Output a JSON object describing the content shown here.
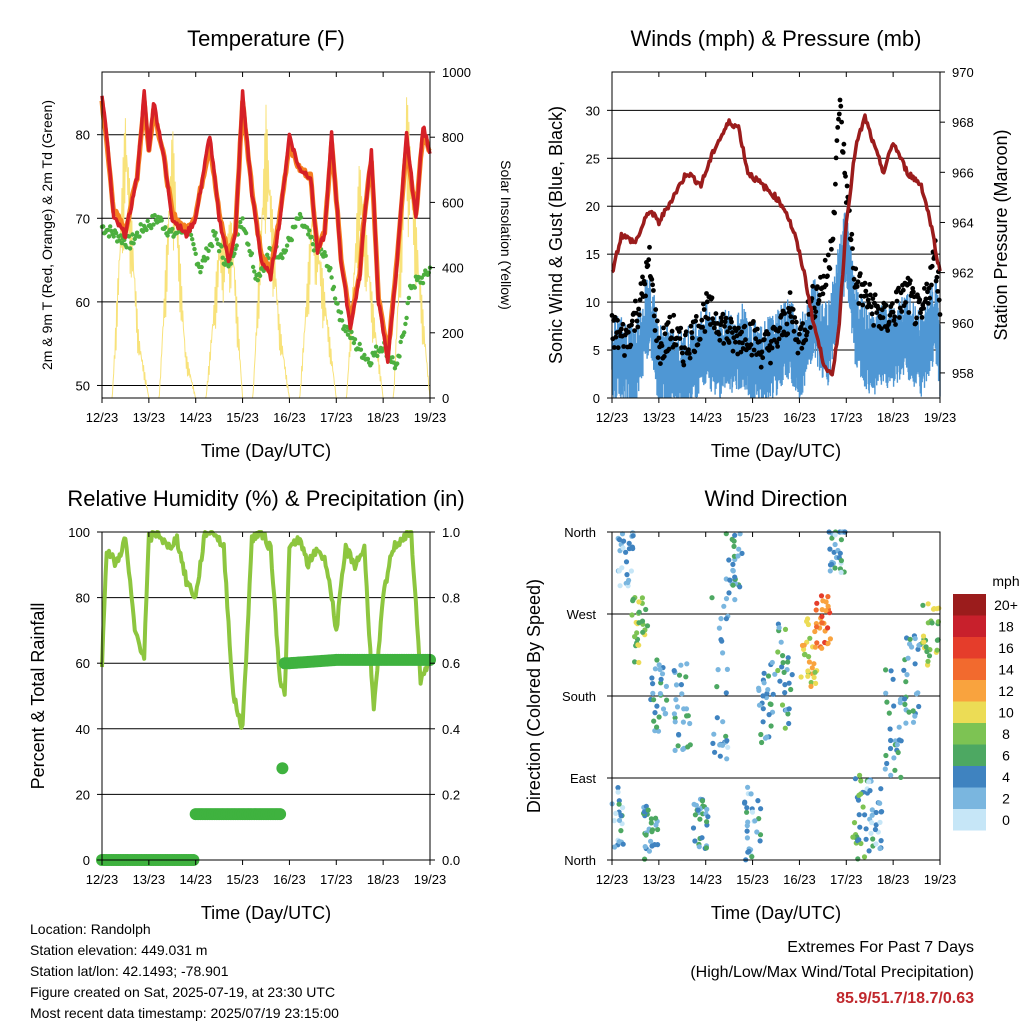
{
  "chart_data": [
    {
      "type": "line",
      "title": "Temperature (F)",
      "xlabel": "Time (Day/UTC)",
      "ylabel": "2m & 9m T (Red, Orange) & 2m Td (Green)",
      "ylabel_right": "Solar Insolation (Yellow)",
      "categories": [
        "12/23",
        "13/23",
        "14/23",
        "15/23",
        "16/23",
        "17/23",
        "18/23",
        "19/23"
      ],
      "ylim": [
        48.5,
        87.5
      ],
      "yticks": [
        50,
        60,
        70,
        80
      ],
      "ylim_right": [
        0,
        1000
      ],
      "yticks_right": [
        0,
        200,
        400,
        600,
        800,
        1000
      ],
      "colors": {
        "t2m": "#d62027",
        "t9m": "#f57f20",
        "td": "#4caf3f",
        "solar": "#f8e27a"
      },
      "series": [
        {
          "key": "t2m",
          "x": [
            0,
            0.1,
            0.25,
            0.5,
            0.75,
            0.9,
            1.0,
            1.1,
            1.3,
            1.5,
            1.8,
            2.0,
            2.3,
            2.5,
            2.7,
            2.85,
            3.0,
            3.2,
            3.4,
            3.6,
            3.8,
            4.0,
            4.2,
            4.45,
            4.6,
            4.75,
            4.9,
            5.1,
            5.3,
            5.5,
            5.6,
            5.75,
            5.9,
            6.1,
            6.3,
            6.5,
            6.7,
            6.85,
            7.0
          ],
          "values": [
            85,
            80,
            70,
            68,
            75,
            85,
            78,
            84,
            78,
            70,
            68,
            70,
            80,
            70,
            65,
            68,
            85,
            73,
            65,
            63,
            70,
            80,
            76,
            75,
            66,
            68,
            80,
            65,
            57,
            63,
            70,
            78,
            60,
            53,
            65,
            80,
            70,
            81,
            78
          ]
        },
        {
          "key": "t9m",
          "x": [
            0,
            0.1,
            0.25,
            0.5,
            0.75,
            0.9,
            1.0,
            1.1,
            1.3,
            1.5,
            1.8,
            2.0,
            2.3,
            2.5,
            2.7,
            2.85,
            3.0,
            3.2,
            3.4,
            3.6,
            3.8,
            4.0,
            4.2,
            4.45,
            4.6,
            4.75,
            4.9,
            5.1,
            5.3,
            5.5,
            5.6,
            5.75,
            5.9,
            6.1,
            6.3,
            6.5,
            6.7,
            6.85,
            7.0
          ],
          "values": [
            84,
            79,
            71,
            68.5,
            75,
            84,
            78,
            83,
            78,
            70.5,
            68.5,
            70.5,
            79,
            70.5,
            65.5,
            68.5,
            84,
            73.5,
            65.5,
            63.5,
            70.5,
            79,
            76,
            75,
            66.5,
            68.5,
            79,
            65.5,
            57.5,
            63.5,
            70.5,
            77,
            60.5,
            53.5,
            65.5,
            79,
            70.5,
            80,
            78
          ]
        },
        {
          "key": "td",
          "x": [
            0,
            0.3,
            0.6,
            0.9,
            1.2,
            1.5,
            1.8,
            2.1,
            2.4,
            2.7,
            3.0,
            3.3,
            3.6,
            3.9,
            4.2,
            4.5,
            4.8,
            5.1,
            5.4,
            5.7,
            6.0,
            6.3,
            6.6,
            6.9,
            7.0
          ],
          "values": [
            69,
            68,
            67,
            69,
            70,
            68,
            69,
            64,
            68,
            64,
            70,
            63,
            66,
            66,
            70,
            67,
            65,
            58,
            55,
            53,
            55,
            52,
            62,
            63,
            64
          ]
        },
        {
          "key": "solar",
          "x": [
            0,
            0.22,
            0.5,
            0.78,
            1.0,
            1.22,
            1.5,
            1.78,
            2.0,
            2.22,
            2.5,
            2.78,
            3.0,
            3.22,
            3.5,
            3.78,
            4.0,
            4.22,
            4.5,
            4.78,
            5.0,
            5.22,
            5.5,
            5.78,
            6.0,
            6.22,
            6.5,
            6.78,
            7.0
          ],
          "values": [
            0,
            0,
            900,
            200,
            0,
            0,
            850,
            150,
            0,
            0,
            500,
            550,
            0,
            0,
            900,
            250,
            0,
            0,
            650,
            300,
            0,
            0,
            750,
            300,
            0,
            0,
            950,
            400,
            0
          ]
        }
      ]
    },
    {
      "type": "scatter",
      "title": "Winds (mph) & Pressure (mb)",
      "xlabel": "Time (Day/UTC)",
      "ylabel": "Sonic Wind & Gust (Blue, Black)",
      "ylabel_right": "Station Pressure (Maroon)",
      "categories": [
        "12/23",
        "13/23",
        "14/23",
        "15/23",
        "16/23",
        "17/23",
        "18/23",
        "19/23"
      ],
      "ylim": [
        0,
        34
      ],
      "yticks": [
        0,
        5,
        10,
        15,
        20,
        25,
        30
      ],
      "ylim_right": [
        957,
        970
      ],
      "yticks_right": [
        958,
        960,
        962,
        964,
        966,
        968,
        970
      ],
      "colors": {
        "wind": "#4f97d4",
        "gust": "#000000",
        "pressure": "#9b1c1c"
      },
      "series": [
        {
          "key": "wind",
          "x": [
            0,
            0.5,
            0.8,
            1.0,
            1.5,
            2.0,
            2.3,
            2.8,
            3.0,
            3.5,
            3.8,
            4.0,
            4.3,
            4.6,
            4.9,
            5.0,
            5.2,
            5.5,
            5.8,
            6.0,
            6.3,
            6.6,
            6.9,
            7.0
          ],
          "values": [
            5,
            4,
            10,
            4,
            3,
            6,
            5,
            6,
            4,
            5,
            7,
            4,
            9,
            6,
            14,
            17,
            8,
            5,
            6,
            6,
            7,
            5,
            9,
            5
          ]
        },
        {
          "key": "gust",
          "x": [
            0,
            0.3,
            0.6,
            0.8,
            1.0,
            1.3,
            1.5,
            1.8,
            2.0,
            2.3,
            2.6,
            2.9,
            3.2,
            3.5,
            3.8,
            4.0,
            4.3,
            4.6,
            4.75,
            4.85,
            5.0,
            5.2,
            5.5,
            5.8,
            6.0,
            6.3,
            6.6,
            6.9,
            7.0
          ],
          "values": [
            7,
            6,
            10,
            14,
            5,
            7,
            5,
            7,
            9,
            8,
            6,
            7,
            5,
            6,
            9,
            6,
            10,
            13,
            20,
            31,
            22,
            12,
            10,
            8,
            9,
            11,
            8,
            15,
            10
          ]
        },
        {
          "key": "pressure",
          "x": [
            0,
            0.2,
            0.5,
            0.8,
            1.0,
            1.3,
            1.6,
            1.9,
            2.2,
            2.5,
            2.7,
            2.9,
            3.2,
            3.5,
            3.7,
            3.9,
            4.1,
            4.3,
            4.5,
            4.7,
            4.85,
            5.0,
            5.2,
            5.4,
            5.6,
            5.8,
            6.0,
            6.3,
            6.6,
            6.8,
            7.0
          ],
          "values": [
            962,
            963.5,
            963.2,
            964.5,
            964,
            965,
            966,
            965.5,
            967,
            968,
            967.8,
            966,
            965.5,
            965,
            964.5,
            963.5,
            962,
            960,
            958.5,
            957.8,
            960,
            964,
            967,
            968.2,
            967,
            966,
            967.2,
            966,
            965.5,
            964,
            962
          ]
        }
      ]
    },
    {
      "type": "line",
      "title": "Relative Humidity (%) & Precipitation (in)",
      "xlabel": "Time (Day/UTC)",
      "ylabel": "Percent & Total Rainfall",
      "categories": [
        "12/23",
        "13/23",
        "14/23",
        "15/23",
        "16/23",
        "17/23",
        "18/23",
        "19/23"
      ],
      "ylim": [
        0,
        100
      ],
      "yticks": [
        0,
        20,
        40,
        60,
        80,
        100
      ],
      "ylim_right": [
        0,
        1
      ],
      "yticks_right": [
        "0.0",
        "0.2",
        "0.4",
        "0.6",
        "0.8",
        "1.0"
      ],
      "colors": {
        "rh": "#8dc63f",
        "precip": "#3fb23f"
      },
      "series": [
        {
          "key": "rh",
          "x": [
            0,
            0.1,
            0.3,
            0.5,
            0.7,
            0.9,
            1.0,
            1.2,
            1.4,
            1.6,
            1.8,
            2.0,
            2.2,
            2.4,
            2.6,
            2.8,
            3.0,
            3.2,
            3.4,
            3.6,
            3.8,
            3.9,
            4.0,
            4.2,
            4.4,
            4.6,
            4.8,
            5.0,
            5.2,
            5.4,
            5.6,
            5.8,
            6.0,
            6.2,
            6.4,
            6.6,
            6.8,
            7.0
          ],
          "values": [
            60,
            95,
            90,
            98,
            70,
            62,
            98,
            100,
            95,
            98,
            85,
            80,
            100,
            100,
            95,
            50,
            40,
            98,
            100,
            95,
            55,
            50,
            95,
            98,
            90,
            95,
            90,
            70,
            95,
            90,
            95,
            45,
            80,
            95,
            98,
            100,
            55,
            60
          ]
        },
        {
          "key": "precip",
          "x": [
            0,
            1.95,
            2.0,
            3.8,
            3.85,
            3.9,
            4.0,
            5.0,
            7.0
          ],
          "values": [
            0,
            0,
            0.14,
            0.14,
            0.28,
            0.6,
            0.6,
            0.61,
            0.61
          ]
        }
      ]
    },
    {
      "type": "scatter",
      "title": "Wind Direction",
      "xlabel": "Time (Day/UTC)",
      "ylabel": "Direction (Colored By Speed)",
      "categories": [
        "12/23",
        "13/23",
        "14/23",
        "15/23",
        "16/23",
        "17/23",
        "18/23",
        "19/23"
      ],
      "ycategories": [
        "North",
        "East",
        "South",
        "West",
        "North"
      ],
      "ylim": [
        0,
        360
      ],
      "legend": {
        "title": "mph",
        "labels": [
          "20+",
          "18",
          "16",
          "14",
          "12",
          "10",
          "8",
          "6",
          "4",
          "2",
          "0"
        ],
        "colors": [
          "#9b1c1c",
          "#c8202c",
          "#e53d2b",
          "#f26a2e",
          "#f9a33e",
          "#ecdc55",
          "#7dc353",
          "#4da862",
          "#3f83c0",
          "#7ab6df",
          "#c6e6f7"
        ]
      },
      "clusters": [
        {
          "x": 0.1,
          "y": 45,
          "spread": 40,
          "speed": 3
        },
        {
          "x": 0.3,
          "y": 330,
          "spread": 30,
          "speed": 2
        },
        {
          "x": 0.6,
          "y": 250,
          "spread": 40,
          "speed": 8
        },
        {
          "x": 0.8,
          "y": 30,
          "spread": 30,
          "speed": 4
        },
        {
          "x": 1.0,
          "y": 180,
          "spread": 40,
          "speed": 4
        },
        {
          "x": 1.5,
          "y": 170,
          "spread": 50,
          "speed": 4
        },
        {
          "x": 1.9,
          "y": 40,
          "spread": 30,
          "speed": 4
        },
        {
          "x": 2.3,
          "y": 200,
          "spread": 90,
          "speed": 3
        },
        {
          "x": 2.6,
          "y": 320,
          "spread": 40,
          "speed": 4
        },
        {
          "x": 3.0,
          "y": 40,
          "spread": 40,
          "speed": 3
        },
        {
          "x": 3.3,
          "y": 170,
          "spread": 50,
          "speed": 4
        },
        {
          "x": 3.7,
          "y": 200,
          "spread": 60,
          "speed": 5
        },
        {
          "x": 4.2,
          "y": 230,
          "spread": 40,
          "speed": 10
        },
        {
          "x": 4.5,
          "y": 260,
          "spread": 30,
          "speed": 14
        },
        {
          "x": 4.8,
          "y": 340,
          "spread": 30,
          "speed": 3
        },
        {
          "x": 5.3,
          "y": 45,
          "spread": 50,
          "speed": 6
        },
        {
          "x": 5.6,
          "y": 50,
          "spread": 40,
          "speed": 3
        },
        {
          "x": 6.0,
          "y": 150,
          "spread": 60,
          "speed": 4
        },
        {
          "x": 6.4,
          "y": 200,
          "spread": 50,
          "speed": 4
        },
        {
          "x": 6.8,
          "y": 250,
          "spread": 40,
          "speed": 8
        }
      ]
    }
  ],
  "info": {
    "location": "Location: Randolph",
    "elevation": "Station elevation: 449.031 m",
    "latlon": "Station lat/lon: 42.1493; -78.901",
    "created": "Figure created on Sat, 2025-07-19, at 23:30 UTC",
    "recent": "Most recent data timestamp: 2025/07/19 23:15:00"
  },
  "extremes": {
    "line1": "Extremes For Past 7 Days",
    "line2": "(High/Low/Max Wind/Total Precipitation)",
    "values": "85.9/51.7/18.7/0.63"
  }
}
